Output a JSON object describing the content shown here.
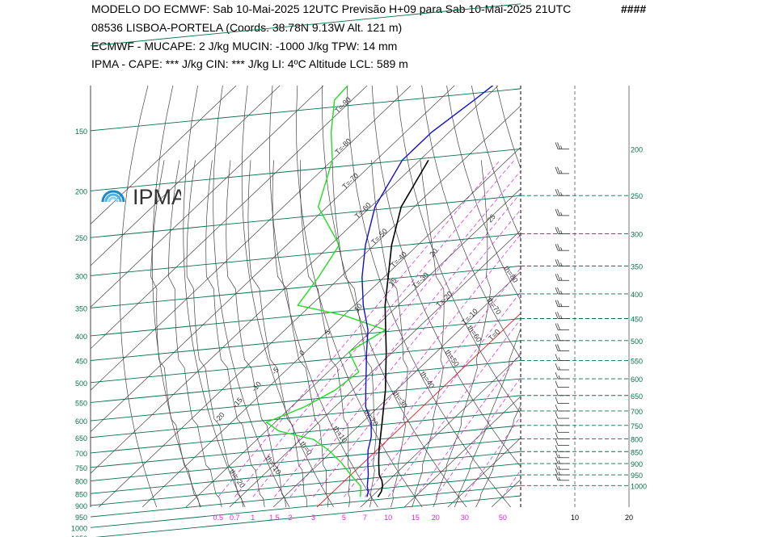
{
  "header": {
    "line1": "MODELO DO ECMWF:  Sab  10-Mai-2025 12UTC  Previsão H+09  para  Sab 10-Mai-2025 21UTC",
    "hash": "####",
    "line2": "08536   LISBOA-PORTELA  (Coords.  38.78N 9.13W   Alt. 121 m)",
    "line3": "ECMWF - MUCAPE: 2 J/kg   MUCIN: -1000 J/kg   TPW: 14 mm",
    "line4": "IPMA - CAPE: *** J/kg   CIN: *** J/kg   LI: 4ºC   Altitude LCL: 589 m"
  },
  "logo": {
    "text": "IPMA",
    "icon": "ipma-rainbow-logo-icon"
  },
  "colors": {
    "isobar": "#0a6e50",
    "dry_adiabat": "#444444",
    "moist_adiabat": "#444444",
    "isotherm": "#444444",
    "mixing_ratio": "#e020e0",
    "temperature": "#000000",
    "dewpoint": "#1010d0",
    "wet_bulb_or_rh": "#22dd22",
    "zero_isotherm": "#e02020",
    "wind_panel_grid": "#0a6e50"
  },
  "chart_data": {
    "type": "skew-t",
    "pressure_left_labels": [
      "150",
      "200",
      "250",
      "300",
      "350",
      "400",
      "450",
      "500",
      "550",
      "600",
      "650",
      "700",
      "750",
      "800",
      "850",
      "900",
      "950",
      "1000",
      "1050"
    ],
    "pressure_right_labels": [
      "200",
      "250",
      "300",
      "350",
      "400",
      "450",
      "500",
      "550",
      "600",
      "650",
      "700",
      "750",
      "800",
      "850",
      "900",
      "950",
      "1000"
    ],
    "mixing_ratio_labels": [
      "0.5",
      "0.7",
      "1",
      "1.5",
      "2",
      "3",
      "5",
      "7",
      "10",
      "15",
      "20",
      "30",
      "50"
    ],
    "wind_axis_labels": [
      "10",
      "20"
    ],
    "isotherm_labels": [
      "T=-90",
      "T=-80",
      "T=-70",
      "T=-60",
      "T=-50",
      "T=-40",
      "T=-30",
      "T=-20",
      "T=-10",
      "T=0",
      "T=10",
      "T=20",
      "T=30",
      "T=40"
    ],
    "dry_adiabat_labels": [
      "th=110",
      "th=100",
      "th=90",
      "th=80",
      "th=70",
      "th=60",
      "th=50",
      "th=40",
      "th=30",
      "th=20",
      "th=10",
      "th=0",
      "th=-10",
      "th=-20"
    ],
    "moist_adiabat_labels": [
      "25",
      "20",
      "15",
      "10",
      "5",
      "0",
      "-5",
      "-10",
      "-15",
      "-20"
    ],
    "temperature_profile": [
      {
        "p": 1000,
        "t": 11.5
      },
      {
        "p": 975,
        "t": 11
      },
      {
        "p": 950,
        "t": 10
      },
      {
        "p": 925,
        "t": 8.5
      },
      {
        "p": 900,
        "t": 6.5
      },
      {
        "p": 850,
        "t": 3.5
      },
      {
        "p": 800,
        "t": 0.5
      },
      {
        "p": 700,
        "t": -5.5
      },
      {
        "p": 600,
        "t": -12.5
      },
      {
        "p": 500,
        "t": -21.5
      },
      {
        "p": 400,
        "t": -33
      },
      {
        "p": 300,
        "t": -46
      },
      {
        "p": 250,
        "t": -53
      },
      {
        "p": 200,
        "t": -58
      }
    ],
    "dewpoint_profile": [
      {
        "p": 1000,
        "t": 9
      },
      {
        "p": 975,
        "t": 8
      },
      {
        "p": 950,
        "t": 6.5
      },
      {
        "p": 900,
        "t": 4
      },
      {
        "p": 850,
        "t": 1
      },
      {
        "p": 800,
        "t": -2
      },
      {
        "p": 750,
        "t": -4.5
      },
      {
        "p": 700,
        "t": -8
      },
      {
        "p": 650,
        "t": -13
      },
      {
        "p": 600,
        "t": -17
      },
      {
        "p": 500,
        "t": -26
      },
      {
        "p": 450,
        "t": -31
      },
      {
        "p": 400,
        "t": -38
      },
      {
        "p": 350,
        "t": -45
      },
      {
        "p": 300,
        "t": -52
      },
      {
        "p": 250,
        "t": -59
      },
      {
        "p": 200,
        "t": -64
      },
      {
        "p": 175,
        "t": -64
      },
      {
        "p": 150,
        "t": -62
      },
      {
        "p": 125,
        "t": -60
      }
    ],
    "green_profile": [
      {
        "p": 1000,
        "t": 7.5
      },
      {
        "p": 950,
        "t": 5
      },
      {
        "p": 900,
        "t": 0
      },
      {
        "p": 850,
        "t": -5
      },
      {
        "p": 800,
        "t": -11
      },
      {
        "p": 760,
        "t": -17
      },
      {
        "p": 730,
        "t": -27
      },
      {
        "p": 700,
        "t": -32
      },
      {
        "p": 650,
        "t": -27
      },
      {
        "p": 600,
        "t": -24
      },
      {
        "p": 550,
        "t": -23
      },
      {
        "p": 500,
        "t": -30
      },
      {
        "p": 450,
        "t": -27
      },
      {
        "p": 420,
        "t": -40
      },
      {
        "p": 400,
        "t": -53
      },
      {
        "p": 350,
        "t": -55
      },
      {
        "p": 300,
        "t": -58
      },
      {
        "p": 250,
        "t": -72
      },
      {
        "p": 200,
        "t": -80
      },
      {
        "p": 175,
        "t": -87
      },
      {
        "p": 150,
        "t": -94
      },
      {
        "p": 130,
        "t": -95
      }
    ],
    "parcel_profile_label": "",
    "wind_barbs": [
      {
        "p": 200,
        "speed": 25
      },
      {
        "p": 225,
        "speed": 25
      },
      {
        "p": 250,
        "speed": 25
      },
      {
        "p": 275,
        "speed": 25
      },
      {
        "p": 300,
        "speed": 25
      },
      {
        "p": 325,
        "speed": 25
      },
      {
        "p": 350,
        "speed": 25
      },
      {
        "p": 375,
        "speed": 25
      },
      {
        "p": 400,
        "speed": 25
      },
      {
        "p": 425,
        "speed": 25
      },
      {
        "p": 450,
        "speed": 25
      },
      {
        "p": 475,
        "speed": 20
      },
      {
        "p": 500,
        "speed": 20
      },
      {
        "p": 525,
        "speed": 20
      },
      {
        "p": 550,
        "speed": 15
      },
      {
        "p": 575,
        "speed": 15
      },
      {
        "p": 600,
        "speed": 15
      },
      {
        "p": 625,
        "speed": 10
      },
      {
        "p": 650,
        "speed": 10
      },
      {
        "p": 675,
        "speed": 10
      },
      {
        "p": 700,
        "speed": 10
      },
      {
        "p": 725,
        "speed": 10
      },
      {
        "p": 750,
        "speed": 10
      },
      {
        "p": 775,
        "speed": 10
      },
      {
        "p": 800,
        "speed": 10
      },
      {
        "p": 825,
        "speed": 10
      },
      {
        "p": 850,
        "speed": 10
      },
      {
        "p": 875,
        "speed": 15
      },
      {
        "p": 900,
        "speed": 15
      },
      {
        "p": 925,
        "speed": 15
      },
      {
        "p": 950,
        "speed": 15
      },
      {
        "p": 975,
        "speed": 15
      }
    ],
    "wind_panel_dashed_levels": [
      250,
      300,
      350,
      400,
      450,
      500,
      550,
      600,
      650,
      700,
      750,
      800,
      850,
      900,
      950,
      1000
    ]
  }
}
